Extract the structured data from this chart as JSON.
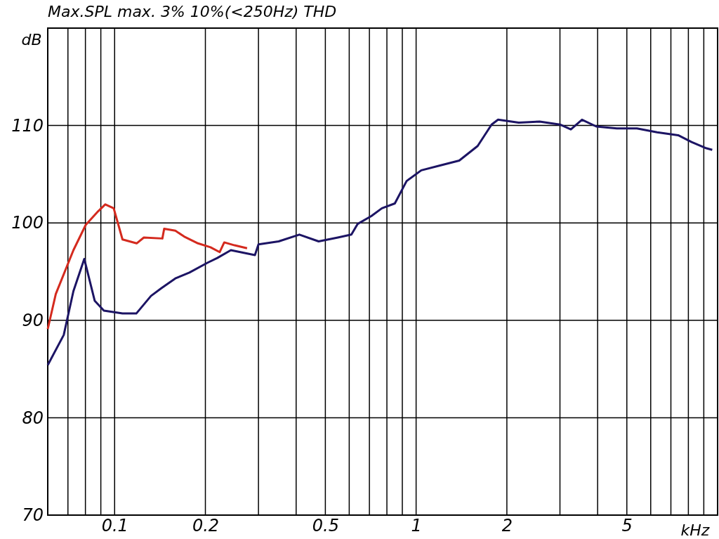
{
  "chart_data": {
    "type": "line",
    "title": "Max.SPL max. 3% 10%(<250Hz) THD",
    "xlabel": "kHz",
    "ylabel": "dB",
    "log": "x",
    "xlim": [
      0.06,
      10
    ],
    "ylim": [
      70,
      120
    ],
    "xticks": [
      {
        "value": 0.07,
        "label": null
      },
      {
        "value": 0.08,
        "label": null
      },
      {
        "value": 0.09,
        "label": null
      },
      0.1,
      0.2,
      {
        "value": 0.3,
        "label": null
      },
      {
        "value": 0.4,
        "label": null
      },
      0.5,
      {
        "value": 0.6,
        "label": null
      },
      {
        "value": 0.7,
        "label": null
      },
      {
        "value": 0.8,
        "label": null
      },
      {
        "value": 0.9,
        "label": null
      },
      1,
      2,
      {
        "value": 3,
        "label": null
      },
      {
        "value": 4,
        "label": null
      },
      5,
      {
        "value": 6,
        "label": null
      },
      {
        "value": 7,
        "label": null
      },
      {
        "value": 8,
        "label": null
      },
      {
        "value": 9,
        "label": null
      }
    ],
    "yticks": [
      70,
      80,
      90,
      100,
      110,
      {
        "value": 120,
        "label": null
      }
    ],
    "grid": true,
    "line_style": "solid",
    "marker": "none",
    "series": [
      {
        "color": "#d42a1e",
        "x": [
          0.06,
          0.0638,
          0.073,
          0.0802,
          0.0882,
          0.0931,
          0.0993,
          0.1062,
          0.1183,
          0.125,
          0.144,
          0.146,
          0.159,
          0.17,
          0.189,
          0.208,
          0.223,
          0.231,
          0.25,
          0.275
        ],
        "values": [
          89.1,
          92.7,
          97.2,
          99.8,
          101.2,
          101.9,
          101.5,
          98.3,
          97.9,
          98.5,
          98.4,
          99.4,
          99.2,
          98.6,
          97.9,
          97.5,
          97.0,
          98.0,
          97.7,
          97.4
        ]
      },
      {
        "color": "#1c1464",
        "x": [
          0.06,
          0.0678,
          0.073,
          0.0793,
          0.0859,
          0.0921,
          0.1062,
          0.118,
          0.132,
          0.143,
          0.159,
          0.177,
          0.203,
          0.219,
          0.243,
          0.292,
          0.3,
          0.35,
          0.41,
          0.475,
          0.55,
          0.61,
          0.64,
          0.71,
          0.77,
          0.85,
          0.93,
          1.04,
          1.2,
          1.39,
          1.6,
          1.78,
          1.87,
          2.19,
          2.57,
          3.0,
          3.26,
          3.55,
          3.96,
          4.63,
          5.4,
          6.3,
          7.4,
          8.2,
          9.1,
          9.6
        ],
        "values": [
          85.4,
          88.5,
          93.0,
          96.3,
          92.0,
          91.0,
          90.7,
          90.7,
          92.5,
          93.3,
          94.3,
          94.9,
          95.9,
          96.4,
          97.2,
          96.7,
          97.8,
          98.1,
          98.8,
          98.1,
          98.5,
          98.8,
          99.9,
          100.7,
          101.5,
          102.0,
          104.3,
          105.4,
          105.9,
          106.4,
          107.9,
          110.1,
          110.6,
          110.3,
          110.4,
          110.1,
          109.6,
          110.6,
          109.9,
          109.7,
          109.7,
          109.3,
          109.0,
          108.3,
          107.7,
          107.5
        ]
      }
    ]
  }
}
